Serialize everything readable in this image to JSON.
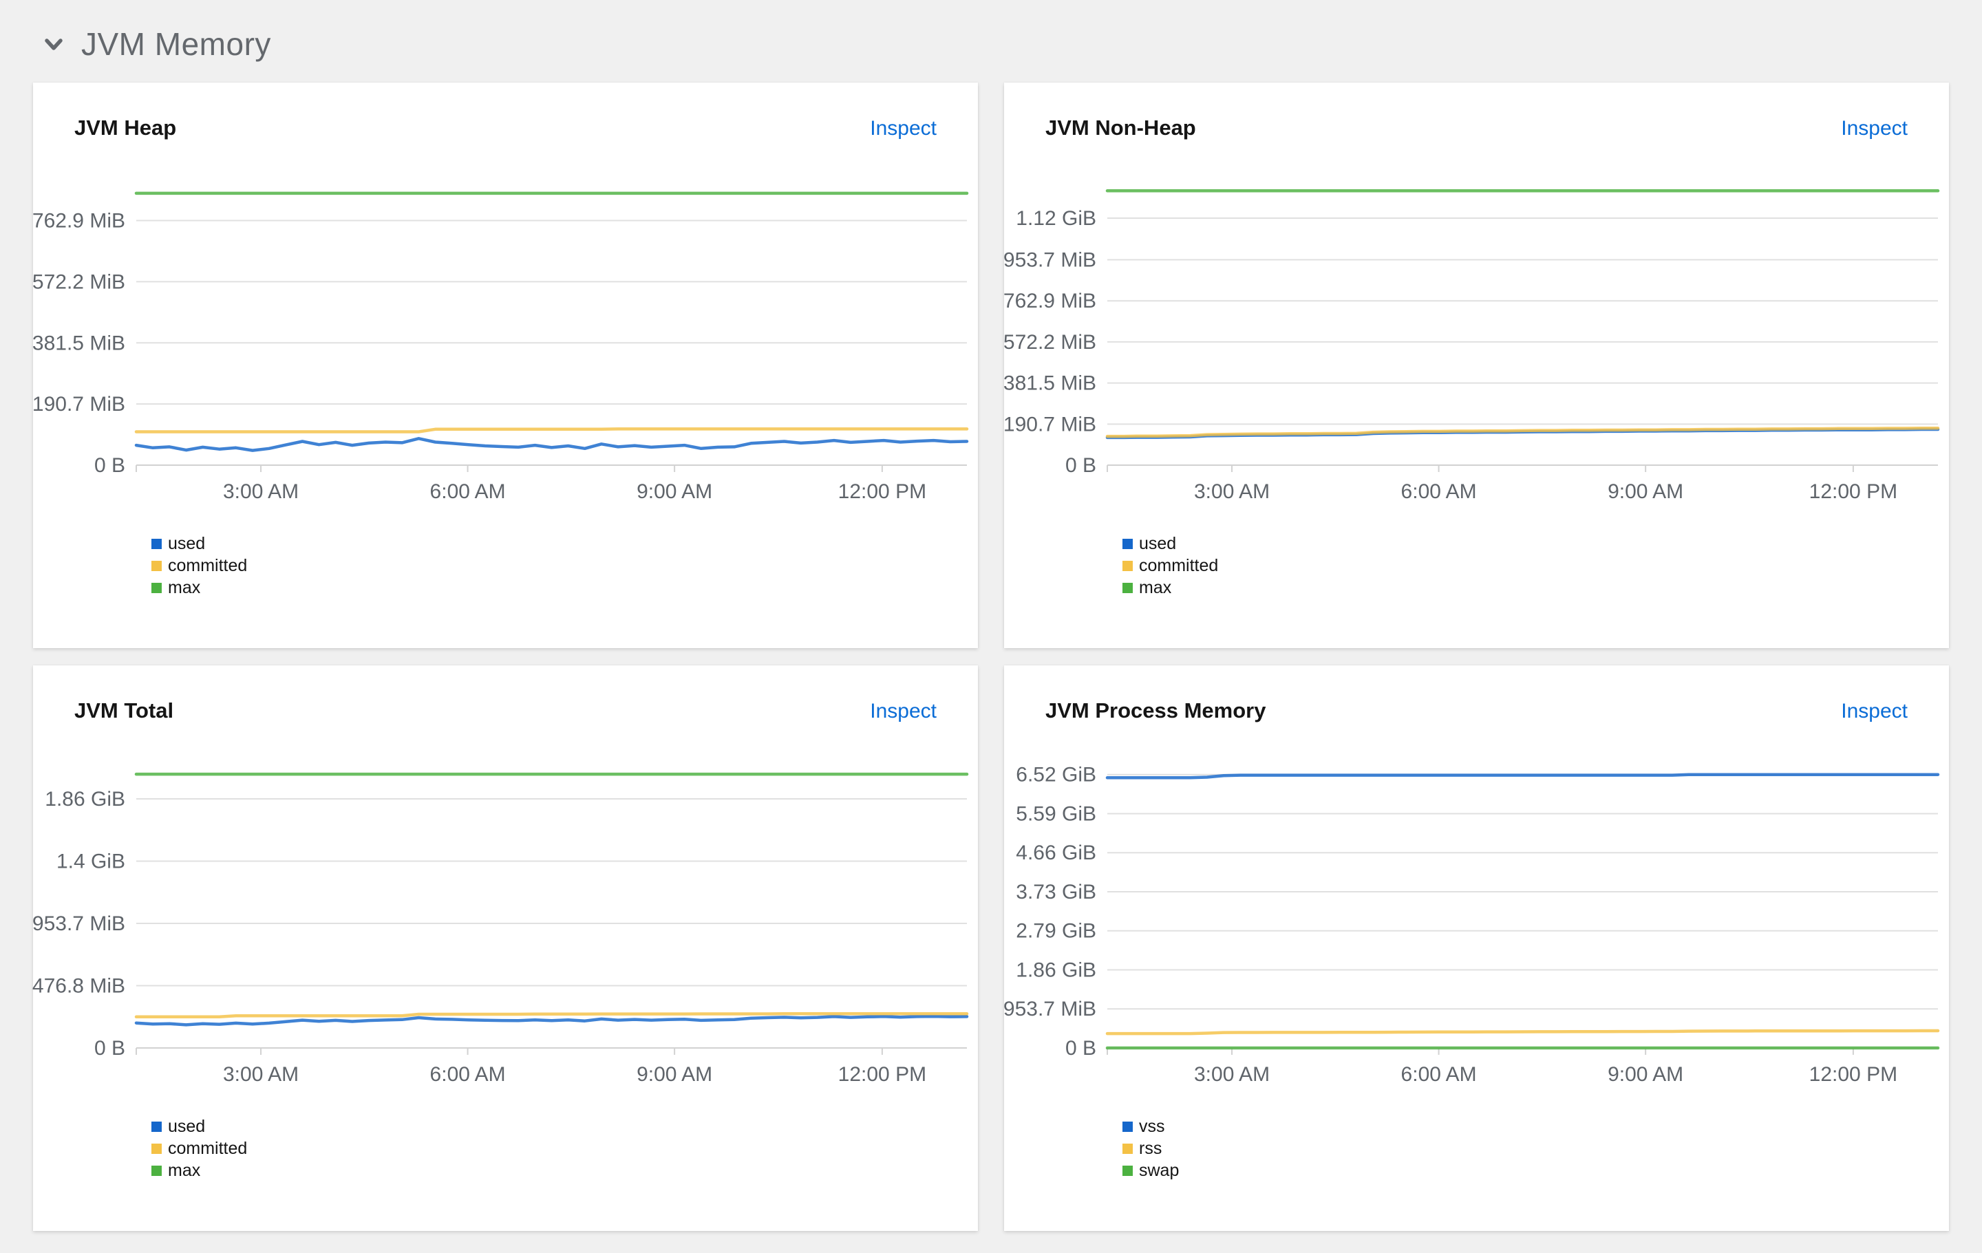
{
  "page": {
    "section_title": "JVM Memory",
    "background": "#f0f0f0",
    "card_background": "#ffffff"
  },
  "colors": {
    "header_text": "#64686d",
    "card_title": "#151515",
    "link": "#0a6cd6",
    "grid": "#e0e0e0",
    "axis": "#d2d2d2",
    "axis_label": "#5f646a",
    "series_blue": "#1567cb",
    "series_gold": "#f4c145",
    "series_green": "#4cb140"
  },
  "chart_data": [
    {
      "type": "line",
      "title": "JVM Heap",
      "inspect_label": "Inspect",
      "unit": "MiB",
      "ymax": 880,
      "ylim": [
        0,
        880
      ],
      "grid": true,
      "legend_position": "bottom-left",
      "y_ticks": [
        {
          "v": 0,
          "label": "0 B"
        },
        {
          "v": 190.7,
          "label": "190.7 MiB"
        },
        {
          "v": 381.5,
          "label": "381.5 MiB"
        },
        {
          "v": 572.2,
          "label": "572.2 MiB"
        },
        {
          "v": 762.9,
          "label": "762.9 MiB"
        }
      ],
      "x_ticks": [
        {
          "pos": 0.15,
          "label": "3:00 AM"
        },
        {
          "pos": 0.399,
          "label": "6:00 AM"
        },
        {
          "pos": 0.648,
          "label": "9:00 AM"
        },
        {
          "pos": 0.898,
          "label": "12:00 PM"
        }
      ],
      "series": [
        {
          "name": "used",
          "color": "#1567cb",
          "values": [
            62,
            54,
            57,
            47,
            56,
            50,
            54,
            46,
            52,
            63,
            74,
            64,
            71,
            62,
            69,
            72,
            70,
            83,
            72,
            68,
            64,
            60,
            58,
            56,
            62,
            55,
            60,
            52,
            66,
            57,
            61,
            56,
            59,
            62,
            52,
            56,
            57,
            68,
            71,
            74,
            69,
            72,
            77,
            71,
            74,
            77,
            72,
            75,
            77,
            73,
            74
          ]
        },
        {
          "name": "committed",
          "color": "#f4c145",
          "values": [
            104,
            104,
            104,
            104,
            104,
            104,
            104,
            104,
            104,
            104,
            104,
            104,
            104,
            104,
            104,
            104,
            104,
            104,
            112,
            112,
            112,
            112,
            112,
            112,
            112,
            112,
            112,
            112,
            112,
            113,
            113,
            113,
            113,
            113,
            113,
            113,
            113,
            113,
            113,
            113,
            113,
            113,
            113,
            113,
            113,
            113,
            113,
            113,
            113,
            113,
            113
          ]
        },
        {
          "name": "max",
          "color": "#4cb140",
          "values": [
            848,
            848
          ]
        }
      ]
    },
    {
      "type": "line",
      "title": "JVM Non-Heap",
      "inspect_label": "Inspect",
      "unit": "MiB",
      "ymax": 1310,
      "ylim": [
        0,
        1310
      ],
      "grid": true,
      "legend_position": "bottom-left",
      "y_ticks": [
        {
          "v": 0,
          "label": "0 B"
        },
        {
          "v": 190.7,
          "label": "190.7 MiB"
        },
        {
          "v": 381.5,
          "label": "381.5 MiB"
        },
        {
          "v": 572.2,
          "label": "572.2 MiB"
        },
        {
          "v": 762.9,
          "label": "762.9 MiB"
        },
        {
          "v": 953.7,
          "label": "953.7 MiB"
        },
        {
          "v": 1146.9,
          "label": "1.12 GiB"
        }
      ],
      "x_ticks": [
        {
          "pos": 0.15,
          "label": "3:00 AM"
        },
        {
          "pos": 0.399,
          "label": "6:00 AM"
        },
        {
          "pos": 0.648,
          "label": "9:00 AM"
        },
        {
          "pos": 0.898,
          "label": "12:00 PM"
        }
      ],
      "series": [
        {
          "name": "used",
          "color": "#1567cb",
          "values": [
            128,
            128,
            129,
            129,
            130,
            131,
            136,
            137,
            138,
            139,
            139,
            140,
            140,
            141,
            141,
            142,
            147,
            149,
            150,
            151,
            151,
            152,
            152,
            153,
            153,
            154,
            155,
            155,
            156,
            156,
            157,
            157,
            158,
            158,
            159,
            159,
            160,
            160,
            161,
            161,
            162,
            162,
            163,
            163,
            164,
            164,
            164,
            165,
            165,
            166,
            166
          ]
        },
        {
          "name": "committed",
          "color": "#f4c145",
          "values": [
            134,
            134,
            135,
            135,
            136,
            137,
            142,
            143,
            144,
            145,
            145,
            146,
            146,
            147,
            147,
            148,
            153,
            155,
            156,
            157,
            157,
            158,
            158,
            159,
            159,
            160,
            161,
            161,
            162,
            162,
            163,
            163,
            164,
            164,
            165,
            165,
            166,
            166,
            167,
            167,
            168,
            168,
            169,
            169,
            170,
            170,
            170,
            171,
            171,
            172,
            172
          ]
        },
        {
          "name": "max",
          "color": "#4cb140",
          "values": [
            1274,
            1274
          ]
        }
      ]
    },
    {
      "type": "line",
      "title": "JVM Total",
      "inspect_label": "Inspect",
      "unit": "MiB",
      "ymax": 2160,
      "ylim": [
        0,
        2160
      ],
      "grid": true,
      "legend_position": "bottom-left",
      "y_ticks": [
        {
          "v": 0,
          "label": "0 B"
        },
        {
          "v": 476.8,
          "label": "476.8 MiB"
        },
        {
          "v": 953.7,
          "label": "953.7 MiB"
        },
        {
          "v": 1430.5,
          "label": "1.4 GiB"
        },
        {
          "v": 1907.4,
          "label": "1.86 GiB"
        }
      ],
      "x_ticks": [
        {
          "pos": 0.15,
          "label": "3:00 AM"
        },
        {
          "pos": 0.399,
          "label": "6:00 AM"
        },
        {
          "pos": 0.648,
          "label": "9:00 AM"
        },
        {
          "pos": 0.898,
          "label": "12:00 PM"
        }
      ],
      "series": [
        {
          "name": "used",
          "color": "#1567cb",
          "values": [
            191,
            183,
            186,
            177,
            186,
            181,
            190,
            183,
            190,
            202,
            213,
            204,
            211,
            203,
            210,
            214,
            217,
            232,
            222,
            219,
            215,
            212,
            210,
            209,
            215,
            209,
            215,
            207,
            222,
            213,
            218,
            213,
            217,
            220,
            211,
            215,
            217,
            228,
            232,
            235,
            231,
            234,
            240,
            234,
            238,
            241,
            236,
            240,
            242,
            239,
            240
          ]
        },
        {
          "name": "committed",
          "color": "#f4c145",
          "values": [
            238,
            238,
            238,
            238,
            238,
            238,
            246,
            246,
            246,
            246,
            246,
            246,
            246,
            246,
            246,
            246,
            246,
            258,
            258,
            258,
            258,
            258,
            258,
            258,
            259,
            259,
            259,
            259,
            260,
            260,
            260,
            260,
            260,
            260,
            261,
            261,
            261,
            261,
            261,
            262,
            262,
            262,
            262,
            262,
            262,
            262,
            262,
            262,
            262,
            262,
            262
          ]
        },
        {
          "name": "max",
          "color": "#4cb140",
          "values": [
            2096,
            2096
          ]
        }
      ]
    },
    {
      "type": "line",
      "title": "JVM Process Memory",
      "inspect_label": "Inspect",
      "unit": "MiB",
      "ymax": 6890,
      "ylim": [
        0,
        6890
      ],
      "grid": true,
      "legend_position": "bottom-left",
      "y_ticks": [
        {
          "v": 0,
          "label": "0 B"
        },
        {
          "v": 953.7,
          "label": "953.7 MiB"
        },
        {
          "v": 1907.4,
          "label": "1.86 GiB"
        },
        {
          "v": 2861.1,
          "label": "2.79 GiB"
        },
        {
          "v": 3814.8,
          "label": "3.73 GiB"
        },
        {
          "v": 4768.5,
          "label": "4.66 GiB"
        },
        {
          "v": 5722.2,
          "label": "5.59 GiB"
        },
        {
          "v": 6675.9,
          "label": "6.52 GiB"
        }
      ],
      "x_ticks": [
        {
          "pos": 0.15,
          "label": "3:00 AM"
        },
        {
          "pos": 0.399,
          "label": "6:00 AM"
        },
        {
          "pos": 0.648,
          "label": "9:00 AM"
        },
        {
          "pos": 0.898,
          "label": "12:00 PM"
        }
      ],
      "series": [
        {
          "name": "vss",
          "color": "#1567cb",
          "values": [
            6600,
            6600,
            6600,
            6600,
            6600,
            6600,
            6612,
            6652,
            6662,
            6662,
            6662,
            6662,
            6662,
            6662,
            6662,
            6662,
            6662,
            6662,
            6662,
            6662,
            6662,
            6662,
            6662,
            6662,
            6662,
            6662,
            6662,
            6662,
            6662,
            6662,
            6662,
            6662,
            6662,
            6662,
            6662,
            6676,
            6676,
            6676,
            6676,
            6676,
            6676,
            6676,
            6676,
            6676,
            6676,
            6676,
            6676,
            6676,
            6676,
            6676,
            6676
          ]
        },
        {
          "name": "rss",
          "color": "#f4c145",
          "values": [
            352,
            352,
            352,
            352,
            352,
            352,
            362,
            376,
            378,
            378,
            379,
            379,
            380,
            380,
            381,
            381,
            382,
            384,
            386,
            388,
            390,
            391,
            392,
            393,
            394,
            395,
            396,
            397,
            398,
            399,
            400,
            401,
            402,
            403,
            404,
            410,
            412,
            413,
            414,
            415,
            415,
            416,
            416,
            417,
            417,
            418,
            418,
            419,
            419,
            420,
            420
          ]
        },
        {
          "name": "swap",
          "color": "#4cb140",
          "values": [
            0,
            0
          ]
        }
      ]
    }
  ]
}
